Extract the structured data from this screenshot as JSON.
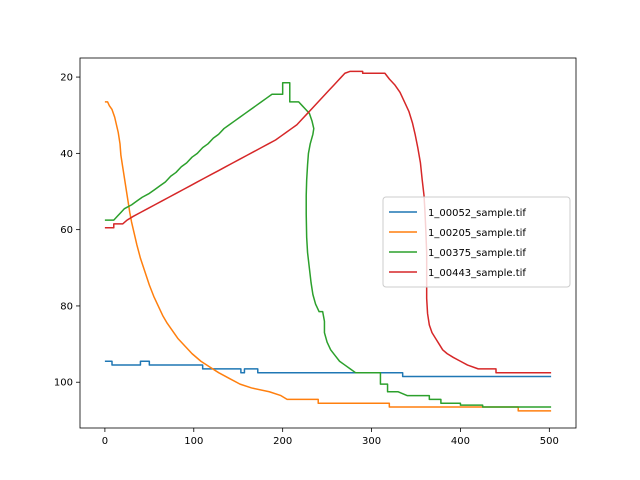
{
  "chart_data": {
    "type": "line",
    "title": "",
    "xlabel": "",
    "ylabel": "",
    "xlim": [
      -28,
      530
    ],
    "ylim": [
      112,
      15
    ],
    "y_inverted": true,
    "grid": false,
    "legend_placement": "center-right",
    "x_ticks": [
      0,
      100,
      200,
      300,
      400,
      500
    ],
    "y_ticks": [
      20,
      40,
      60,
      80,
      100
    ],
    "x_tick_labels": [
      "0",
      "100",
      "200",
      "300",
      "400",
      "500"
    ],
    "y_tick_labels": [
      "20",
      "40",
      "60",
      "80",
      "100"
    ],
    "series": [
      {
        "name": "1_00052_sample.tif",
        "color": "#1f77b4",
        "points": [
          [
            0,
            94.5
          ],
          [
            8,
            94.5
          ],
          [
            8,
            95.5
          ],
          [
            40,
            95.5
          ],
          [
            40,
            94.5
          ],
          [
            50,
            94.5
          ],
          [
            50,
            95.5
          ],
          [
            110,
            95.5
          ],
          [
            110,
            96.5
          ],
          [
            153,
            96.5
          ],
          [
            153,
            97.5
          ],
          [
            157,
            97.5
          ],
          [
            157,
            96.5
          ],
          [
            172,
            96.5
          ],
          [
            172,
            97.5
          ],
          [
            335,
            97.5
          ],
          [
            335,
            98.5
          ],
          [
            502,
            98.5
          ]
        ]
      },
      {
        "name": "1_00205_sample.tif",
        "color": "#ff7f0e",
        "points": [
          [
            0,
            26.5
          ],
          [
            3,
            26.5
          ],
          [
            5,
            27.5
          ],
          [
            8,
            28.5
          ],
          [
            11,
            30.5
          ],
          [
            13,
            32.5
          ],
          [
            15,
            34.5
          ],
          [
            17,
            37.5
          ],
          [
            18,
            40.5
          ],
          [
            20,
            43.5
          ],
          [
            22,
            46.5
          ],
          [
            24,
            49.5
          ],
          [
            26,
            52.5
          ],
          [
            28,
            55.5
          ],
          [
            30,
            58
          ],
          [
            33,
            61
          ],
          [
            36,
            64
          ],
          [
            40,
            67.5
          ],
          [
            45,
            71
          ],
          [
            50,
            74.5
          ],
          [
            55,
            77.5
          ],
          [
            60,
            80
          ],
          [
            65,
            82.5
          ],
          [
            70,
            84.5
          ],
          [
            76,
            86.5
          ],
          [
            82,
            88.5
          ],
          [
            90,
            90.5
          ],
          [
            98,
            92.5
          ],
          [
            108,
            94.5
          ],
          [
            118,
            96
          ],
          [
            128,
            97.5
          ],
          [
            140,
            99
          ],
          [
            152,
            100.5
          ],
          [
            165,
            101.5
          ],
          [
            185,
            102.5
          ],
          [
            198,
            103.5
          ],
          [
            205,
            104.5
          ],
          [
            240,
            104.5
          ],
          [
            240,
            105.5
          ],
          [
            320,
            105.5
          ],
          [
            320,
            106.5
          ],
          [
            465,
            106.5
          ],
          [
            465,
            107.5
          ],
          [
            502,
            107.5
          ]
        ]
      },
      {
        "name": "1_00375_sample.tif",
        "color": "#2ca02c",
        "points": [
          [
            0,
            57.5
          ],
          [
            10,
            57.5
          ],
          [
            14,
            56.5
          ],
          [
            18,
            55.5
          ],
          [
            22,
            54.5
          ],
          [
            30,
            53.5
          ],
          [
            36,
            52.5
          ],
          [
            42,
            51.5
          ],
          [
            50,
            50.5
          ],
          [
            56,
            49.5
          ],
          [
            62,
            48.5
          ],
          [
            68,
            47.5
          ],
          [
            74,
            46
          ],
          [
            80,
            45
          ],
          [
            86,
            43.5
          ],
          [
            92,
            42.5
          ],
          [
            98,
            41
          ],
          [
            104,
            40
          ],
          [
            110,
            38.5
          ],
          [
            116,
            37.5
          ],
          [
            122,
            36
          ],
          [
            128,
            35
          ],
          [
            134,
            33.5
          ],
          [
            140,
            32.5
          ],
          [
            146,
            31.5
          ],
          [
            152,
            30.5
          ],
          [
            158,
            29.5
          ],
          [
            164,
            28.5
          ],
          [
            170,
            27.5
          ],
          [
            176,
            26.5
          ],
          [
            182,
            25.5
          ],
          [
            188,
            24.5
          ],
          [
            200,
            24.5
          ],
          [
            200,
            21.5
          ],
          [
            208,
            21.5
          ],
          [
            208,
            26.5
          ],
          [
            218,
            26.5
          ],
          [
            222,
            27.5
          ],
          [
            226,
            28.5
          ],
          [
            230,
            29.5
          ],
          [
            233,
            31.5
          ],
          [
            235,
            33.5
          ],
          [
            234,
            35
          ],
          [
            231,
            37.5
          ],
          [
            229,
            40
          ],
          [
            228,
            43
          ],
          [
            227,
            47
          ],
          [
            226.5,
            51
          ],
          [
            226.5,
            56
          ],
          [
            227,
            62
          ],
          [
            228,
            66
          ],
          [
            230,
            70
          ],
          [
            232,
            74
          ],
          [
            234,
            77
          ],
          [
            237,
            79.5
          ],
          [
            241,
            81.5
          ],
          [
            245,
            81.5
          ],
          [
            247,
            84
          ],
          [
            247,
            87
          ],
          [
            250,
            89.5
          ],
          [
            254,
            91.5
          ],
          [
            259,
            93
          ],
          [
            264,
            94.5
          ],
          [
            270,
            95.5
          ],
          [
            276,
            96.5
          ],
          [
            282,
            97.5
          ],
          [
            310,
            97.5
          ],
          [
            310,
            100.5
          ],
          [
            318,
            100.5
          ],
          [
            318,
            102.5
          ],
          [
            330,
            102.5
          ],
          [
            340,
            103.5
          ],
          [
            365,
            103.5
          ],
          [
            365,
            104.5
          ],
          [
            378,
            104.5
          ],
          [
            378,
            105.5
          ],
          [
            400,
            105.5
          ],
          [
            400,
            106
          ],
          [
            425,
            106
          ],
          [
            425,
            106.5
          ],
          [
            502,
            106.5
          ]
        ]
      },
      {
        "name": "1_00443_sample.tif",
        "color": "#d62728",
        "points": [
          [
            0,
            59.5
          ],
          [
            10,
            59.5
          ],
          [
            10,
            58.5
          ],
          [
            20,
            58.5
          ],
          [
            25,
            57.5
          ],
          [
            32,
            56.5
          ],
          [
            40,
            55.5
          ],
          [
            48,
            54.5
          ],
          [
            56,
            53.5
          ],
          [
            64,
            52.5
          ],
          [
            72,
            51.5
          ],
          [
            80,
            50.5
          ],
          [
            88,
            49.5
          ],
          [
            96,
            48.5
          ],
          [
            104,
            47.5
          ],
          [
            112,
            46.5
          ],
          [
            120,
            45.5
          ],
          [
            128,
            44.5
          ],
          [
            136,
            43.5
          ],
          [
            144,
            42.5
          ],
          [
            152,
            41.5
          ],
          [
            160,
            40.5
          ],
          [
            168,
            39.5
          ],
          [
            176,
            38.5
          ],
          [
            184,
            37.5
          ],
          [
            192,
            36.5
          ],
          [
            198,
            35.5
          ],
          [
            204,
            34.5
          ],
          [
            210,
            33.5
          ],
          [
            216,
            32.5
          ],
          [
            222,
            31
          ],
          [
            228,
            29.5
          ],
          [
            234,
            28
          ],
          [
            240,
            26.5
          ],
          [
            246,
            25
          ],
          [
            252,
            23.5
          ],
          [
            258,
            22
          ],
          [
            262,
            21
          ],
          [
            266,
            20
          ],
          [
            270,
            19
          ],
          [
            276,
            18.5
          ],
          [
            290,
            18.5
          ],
          [
            290,
            19
          ],
          [
            315,
            19
          ],
          [
            320,
            20.5
          ],
          [
            326,
            22
          ],
          [
            332,
            24
          ],
          [
            337,
            26.5
          ],
          [
            342,
            29
          ],
          [
            346,
            32
          ],
          [
            349,
            35
          ],
          [
            352,
            38.5
          ],
          [
            355,
            42.5
          ],
          [
            357,
            47
          ],
          [
            359,
            51
          ],
          [
            360,
            55
          ],
          [
            361,
            60
          ],
          [
            362,
            66
          ],
          [
            362,
            72
          ],
          [
            362,
            78
          ],
          [
            363,
            82
          ],
          [
            365,
            85
          ],
          [
            368,
            87
          ],
          [
            372,
            88.5
          ],
          [
            376,
            90
          ],
          [
            380,
            91.5
          ],
          [
            385,
            92.5
          ],
          [
            392,
            93.5
          ],
          [
            400,
            94.5
          ],
          [
            408,
            95.5
          ],
          [
            420,
            96.5
          ],
          [
            440,
            96.5
          ],
          [
            440,
            97.5
          ],
          [
            502,
            97.5
          ]
        ]
      }
    ]
  }
}
